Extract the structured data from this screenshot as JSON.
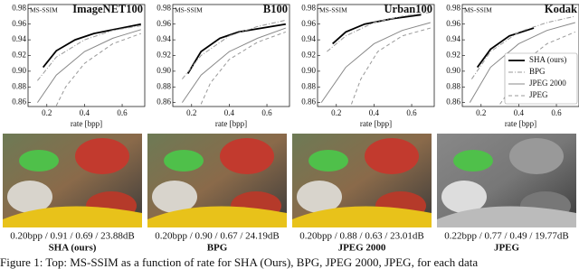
{
  "chart_data": [
    {
      "type": "line",
      "title": "ImageNET100",
      "ylabel": "MS-SSIM",
      "xlabel": "rate [bpp]",
      "xlim": [
        0.1,
        0.72
      ],
      "ylim": [
        0.855,
        0.985
      ],
      "xticks": [
        0.2,
        0.4,
        0.6
      ],
      "yticks": [
        0.86,
        0.88,
        {
          "value": 0.9,
          "label": "0.90"
        },
        0.92,
        0.94,
        0.96,
        0.98
      ],
      "series": [
        {
          "name": "SHA (ours)",
          "color": "#000000",
          "dash": "solid",
          "x": [
            0.18,
            0.25,
            0.35,
            0.45,
            0.7
          ],
          "values": [
            0.905,
            0.926,
            0.94,
            0.948,
            0.96
          ]
        },
        {
          "name": "BPG",
          "color": "#999999",
          "dash": "dashdot",
          "x": [
            0.15,
            0.25,
            0.4,
            0.55,
            0.7
          ],
          "values": [
            0.888,
            0.918,
            0.94,
            0.952,
            0.958
          ]
        },
        {
          "name": "JPEG 2000",
          "color": "#888888",
          "dash": "solid",
          "x": [
            0.15,
            0.25,
            0.4,
            0.55,
            0.7
          ],
          "values": [
            0.86,
            0.895,
            0.925,
            0.942,
            0.953
          ]
        },
        {
          "name": "JPEG",
          "color": "#999999",
          "dash": "dashed",
          "x": [
            0.25,
            0.3,
            0.4,
            0.55,
            0.7
          ],
          "values": [
            0.856,
            0.88,
            0.91,
            0.935,
            0.948
          ]
        }
      ]
    },
    {
      "type": "line",
      "title": "B100",
      "ylabel": "MS-SSIM",
      "xlabel": "rate [bpp]",
      "xlim": [
        0.1,
        0.72
      ],
      "ylim": [
        0.855,
        0.985
      ],
      "xticks": [
        0.2,
        0.4,
        0.6
      ],
      "yticks": [
        0.86,
        0.88,
        {
          "value": 0.9,
          "label": "0.90"
        },
        0.92,
        0.94,
        0.96,
        0.98
      ],
      "series": [
        {
          "name": "SHA (ours)",
          "color": "#000000",
          "dash": "solid",
          "x": [
            0.18,
            0.25,
            0.35,
            0.45,
            0.7
          ],
          "values": [
            0.897,
            0.925,
            0.942,
            0.95,
            0.96
          ]
        },
        {
          "name": "BPG",
          "color": "#999999",
          "dash": "dashdot",
          "x": [
            0.15,
            0.25,
            0.4,
            0.55,
            0.7
          ],
          "values": [
            0.89,
            0.92,
            0.945,
            0.957,
            0.965
          ]
        },
        {
          "name": "JPEG 2000",
          "color": "#888888",
          "dash": "solid",
          "x": [
            0.15,
            0.25,
            0.4,
            0.55,
            0.7
          ],
          "values": [
            0.86,
            0.895,
            0.925,
            0.942,
            0.955
          ]
        },
        {
          "name": "JPEG",
          "color": "#999999",
          "dash": "dashed",
          "x": [
            0.25,
            0.3,
            0.4,
            0.55,
            0.7
          ],
          "values": [
            0.858,
            0.885,
            0.915,
            0.937,
            0.95
          ]
        }
      ]
    },
    {
      "type": "line",
      "title": "Urban100",
      "ylabel": "MS-SSIM",
      "xlabel": "rate [bpp]",
      "xlim": [
        0.1,
        0.72
      ],
      "ylim": [
        0.855,
        0.985
      ],
      "xticks": [
        0.2,
        0.4,
        0.6
      ],
      "yticks": [
        0.86,
        0.88,
        {
          "value": 0.9,
          "label": "0.90"
        },
        0.92,
        0.94,
        0.96,
        0.98
      ],
      "series": [
        {
          "name": "SHA (ours)",
          "color": "#000000",
          "dash": "solid",
          "x": [
            0.18,
            0.25,
            0.35,
            0.5,
            0.65
          ],
          "values": [
            0.935,
            0.95,
            0.96,
            0.967,
            0.972
          ]
        },
        {
          "name": "BPG",
          "color": "#999999",
          "dash": "dashdot",
          "x": [
            0.15,
            0.25,
            0.4,
            0.55,
            0.7
          ],
          "values": [
            0.925,
            0.945,
            0.962,
            0.97,
            0.975
          ]
        },
        {
          "name": "JPEG 2000",
          "color": "#888888",
          "dash": "solid",
          "x": [
            0.12,
            0.25,
            0.4,
            0.55,
            0.7
          ],
          "values": [
            0.86,
            0.905,
            0.935,
            0.952,
            0.962
          ]
        },
        {
          "name": "JPEG",
          "color": "#999999",
          "dash": "dashed",
          "x": [
            0.28,
            0.33,
            0.42,
            0.55,
            0.7
          ],
          "values": [
            0.858,
            0.89,
            0.925,
            0.945,
            0.955
          ]
        }
      ]
    },
    {
      "type": "line",
      "title": "Kodak",
      "ylabel": "MS-SSIM",
      "xlabel": "rate [bpp]",
      "xlim": [
        0.1,
        0.72
      ],
      "ylim": [
        0.855,
        0.985
      ],
      "xticks": [
        0.2,
        0.4,
        0.6
      ],
      "yticks": [
        0.86,
        0.88,
        {
          "value": 0.9,
          "label": "0.90"
        },
        0.92,
        0.94,
        0.96,
        0.98
      ],
      "legend": "right",
      "series": [
        {
          "name": "SHA (ours)",
          "color": "#000000",
          "dash": "solid",
          "x": [
            0.18,
            0.25,
            0.35,
            0.48
          ],
          "values": [
            0.905,
            0.928,
            0.945,
            0.955
          ]
        },
        {
          "name": "BPG",
          "color": "#999999",
          "dash": "dashdot",
          "x": [
            0.15,
            0.25,
            0.4,
            0.55,
            0.7
          ],
          "values": [
            0.89,
            0.925,
            0.95,
            0.962,
            0.97
          ]
        },
        {
          "name": "JPEG 2000",
          "color": "#888888",
          "dash": "solid",
          "x": [
            0.14,
            0.25,
            0.4,
            0.55,
            0.7
          ],
          "values": [
            0.86,
            0.905,
            0.935,
            0.952,
            0.962
          ]
        },
        {
          "name": "JPEG",
          "color": "#999999",
          "dash": "dashed",
          "x": [
            0.3,
            0.35,
            0.42,
            0.55,
            0.7
          ],
          "values": [
            0.858,
            0.875,
            0.91,
            0.935,
            0.95
          ]
        }
      ]
    }
  ],
  "panels": [
    {
      "stats": "0.20bpp / 0.91 / 0.69 / 23.88dB",
      "method": "SHA (ours)"
    },
    {
      "stats": "0.20bpp / 0.90 / 0.67 / 24.19dB",
      "method": "BPG"
    },
    {
      "stats": "0.20bpp / 0.88 / 0.63 / 23.01dB",
      "method": "JPEG 2000"
    },
    {
      "stats": "0.22bpp / 0.77 / 0.49 / 19.77dB",
      "method": "JPEG"
    }
  ],
  "figure_caption": "Figure 1: Top: MS-SSIM as a function of rate for SHA (Ours), BPG, JPEG 2000, JPEG, for each data"
}
